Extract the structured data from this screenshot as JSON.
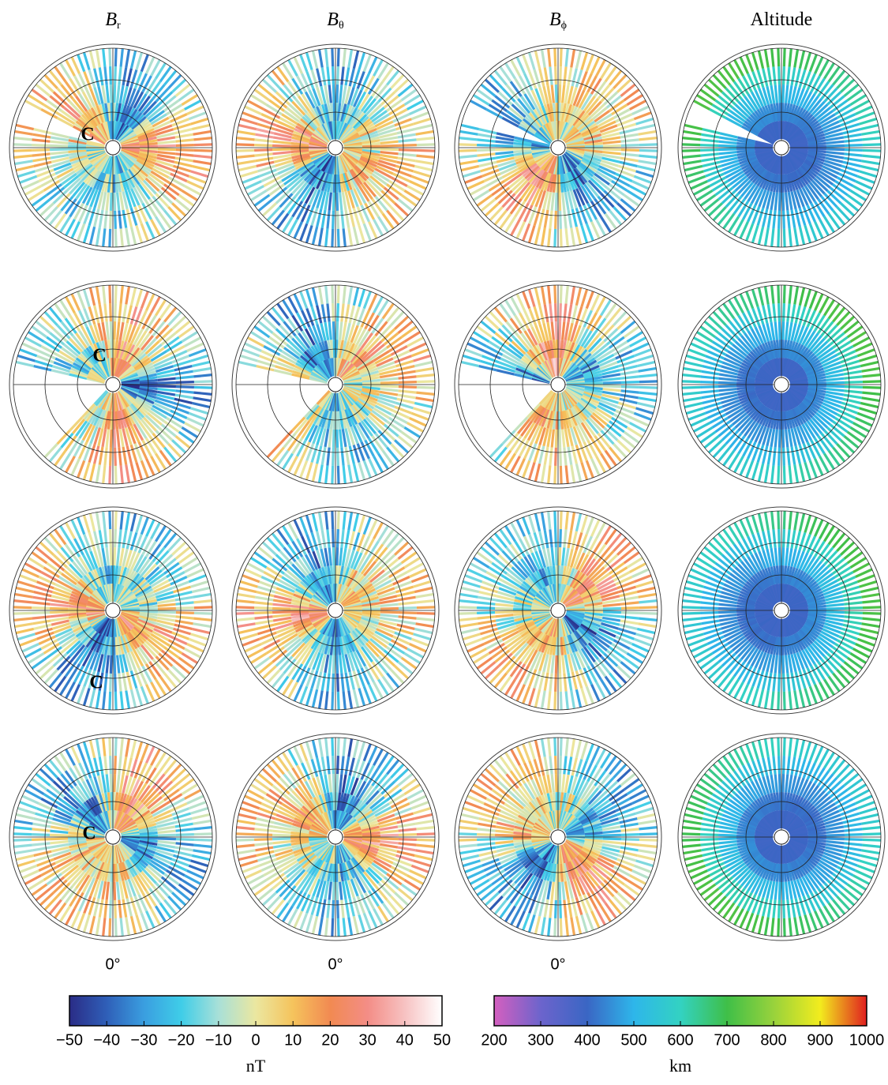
{
  "columns": [
    {
      "label": "B",
      "subscript": "r"
    },
    {
      "label": "B",
      "subscript": "θ"
    },
    {
      "label": "B",
      "subscript": "ϕ"
    },
    {
      "label": "Altitude"
    }
  ],
  "annotation": "C",
  "meridian_label": "0°",
  "chart_data": [
    {
      "type": "colorbar",
      "xlabel": "nT",
      "xlim": [
        -50,
        50
      ],
      "xticks": [
        {
          "value": -50,
          "label": "−50"
        },
        {
          "value": -40,
          "label": "−40"
        },
        {
          "value": -30,
          "label": "−30"
        },
        {
          "value": -20,
          "label": "−20"
        },
        {
          "value": -10,
          "label": "−10"
        },
        0,
        10,
        20,
        30,
        40,
        50
      ],
      "colors": [
        "#2a2c86",
        "#2f5fb8",
        "#3a9ee0",
        "#3fcde8",
        "#a8e0d8",
        "#ebe7a0",
        "#f5c35c",
        "#f28a52",
        "#f38d86",
        "#f7c2c2",
        "#ffffff"
      ]
    },
    {
      "type": "colorbar",
      "xlabel": "km",
      "xlim": [
        200,
        1000
      ],
      "xticks": [
        200,
        300,
        400,
        500,
        600,
        700,
        800,
        900,
        1000
      ],
      "colors": [
        "#d45fbf",
        "#6c64cc",
        "#3a66c4",
        "#2eb6ea",
        "#33d2c2",
        "#3fbf48",
        "#98d23c",
        "#f2ec1e",
        "#e01f1f"
      ]
    }
  ]
}
